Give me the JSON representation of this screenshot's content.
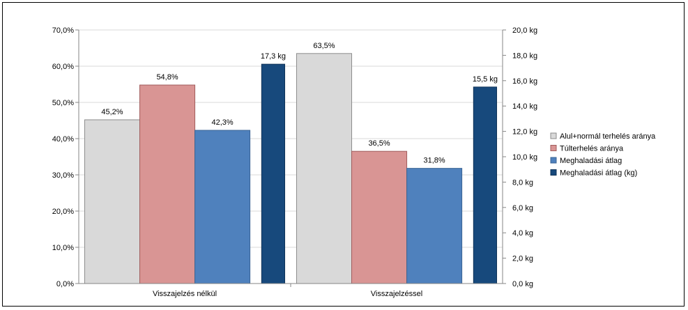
{
  "chart_data": {
    "type": "bar",
    "categories": [
      "Visszajelzés nélkül",
      "Visszajelzéssel"
    ],
    "series": [
      {
        "name": "Alul+normál terhelés aránya",
        "axis": "left",
        "values": [
          45.2,
          63.5
        ],
        "labels": [
          "45,2%",
          "63,5%"
        ],
        "color": "#d9d9d9",
        "stroke": "#8c8c8c"
      },
      {
        "name": "Túlterhelés aránya",
        "axis": "left",
        "values": [
          54.8,
          36.5
        ],
        "labels": [
          "54,8%",
          "36,5%"
        ],
        "color": "#d99594",
        "stroke": "#a05c5c"
      },
      {
        "name": "Meghaladási átlag",
        "axis": "left",
        "values": [
          42.3,
          31.8
        ],
        "labels": [
          "42,3%",
          "31,8%"
        ],
        "color": "#4f81bd",
        "stroke": "#3a6494"
      },
      {
        "name": "Meghaladási átlag (kg)",
        "axis": "right",
        "values": [
          17.3,
          15.5
        ],
        "labels": [
          "17,3 kg",
          "15,5 kg"
        ],
        "color": "#17497c",
        "stroke": "#0f3358"
      }
    ],
    "y_left": {
      "lim": [
        0,
        70
      ],
      "ticks": [
        0,
        10,
        20,
        30,
        40,
        50,
        60,
        70
      ],
      "tick_labels": [
        "0,0%",
        "10,0%",
        "20,0%",
        "30,0%",
        "40,0%",
        "50,0%",
        "60,0%",
        "70,0%"
      ]
    },
    "y_right": {
      "lim": [
        0,
        20
      ],
      "ticks": [
        0,
        2,
        4,
        6,
        8,
        10,
        12,
        14,
        16,
        18,
        20
      ],
      "tick_labels": [
        "0,0 kg",
        "2,0 kg",
        "4,0 kg",
        "6,0 kg",
        "8,0 kg",
        "10,0 kg",
        "12,0 kg",
        "14,0 kg",
        "16,0 kg",
        "18,0 kg",
        "20,0 kg"
      ]
    },
    "grid": true,
    "legend_position": "right"
  }
}
